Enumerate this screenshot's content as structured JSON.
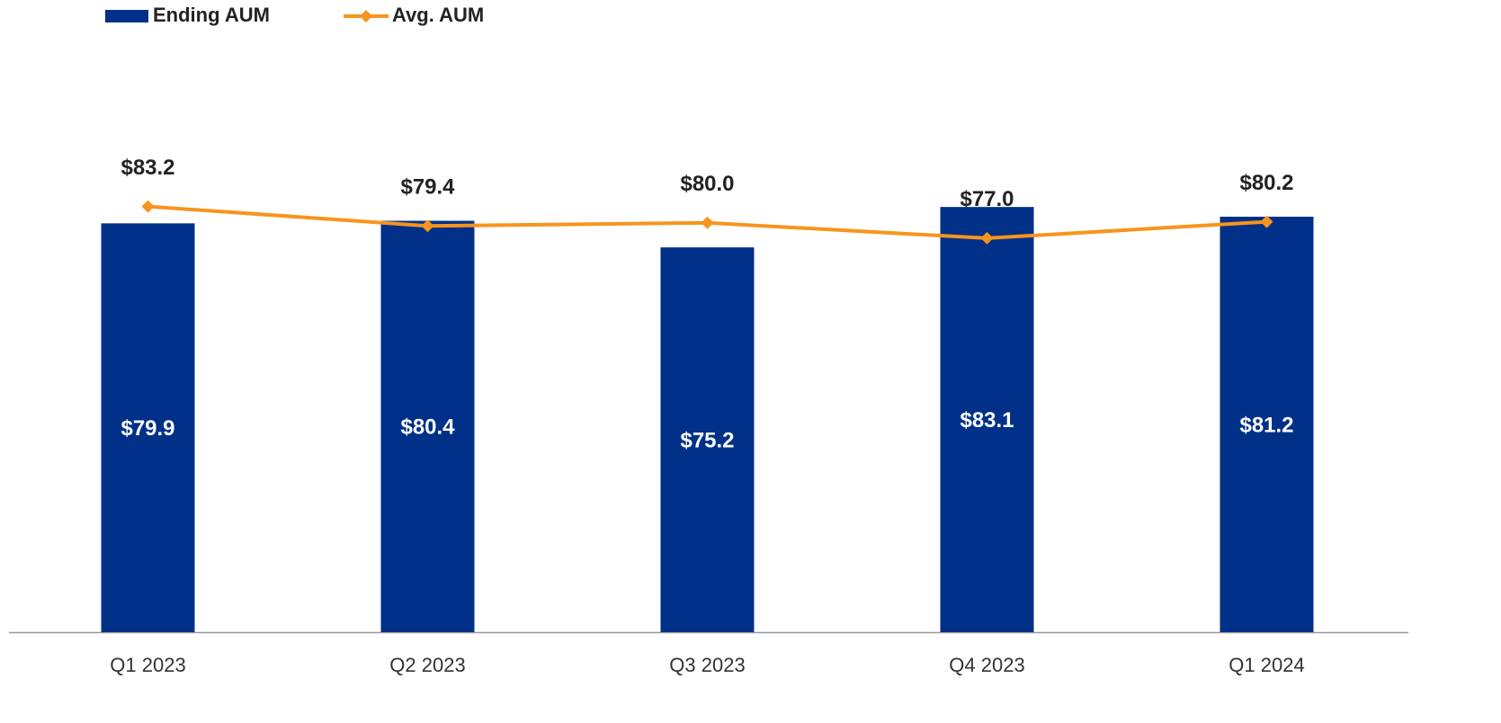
{
  "chart_data": {
    "type": "bar_line",
    "categories": [
      "Q1 2023",
      "Q2 2023",
      "Q3 2023",
      "Q4 2023",
      "Q1 2024"
    ],
    "series": [
      {
        "name": "Ending AUM",
        "type": "bar",
        "color": "#003087",
        "values": [
          79.9,
          80.4,
          75.2,
          83.1,
          81.2
        ],
        "value_labels": [
          "$79.9",
          "$80.4",
          "$75.2",
          "$83.1",
          "$81.2"
        ]
      },
      {
        "name": "Avg. AUM",
        "type": "line",
        "color": "#F7941D",
        "values": [
          83.2,
          79.4,
          80.0,
          77.0,
          80.2
        ],
        "value_labels": [
          "$83.2",
          "$79.4",
          "$80.0",
          "$77.0",
          "$80.2"
        ]
      }
    ],
    "ylim": [
      0,
      100
    ],
    "legend": "top-left"
  }
}
